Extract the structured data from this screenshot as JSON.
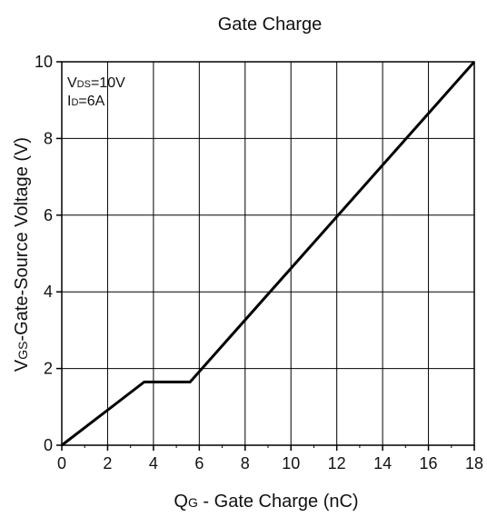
{
  "chart_data": {
    "type": "line",
    "title": "Gate Charge",
    "xlabel": {
      "main": "Q",
      "sub": "G",
      "rest": " - Gate Charge (nC)"
    },
    "ylabel": {
      "main": "V",
      "sub": "GS",
      "rest": "-Gate-Source Voltage (V)"
    },
    "xlim": [
      0,
      18
    ],
    "ylim": [
      0,
      10
    ],
    "xticks": [
      0,
      2,
      4,
      6,
      8,
      10,
      12,
      14,
      16,
      18
    ],
    "yticks": [
      0,
      2,
      4,
      6,
      8,
      10
    ],
    "grid": true,
    "annotations": [
      {
        "main": "V",
        "sub": "DS",
        "rest": "=10V"
      },
      {
        "main": "I",
        "sub": "D",
        "rest": "=6A"
      }
    ],
    "series": [
      {
        "x": [
          0,
          3.6,
          5.6,
          18
        ],
        "y": [
          0,
          1.65,
          1.65,
          10
        ]
      }
    ]
  }
}
